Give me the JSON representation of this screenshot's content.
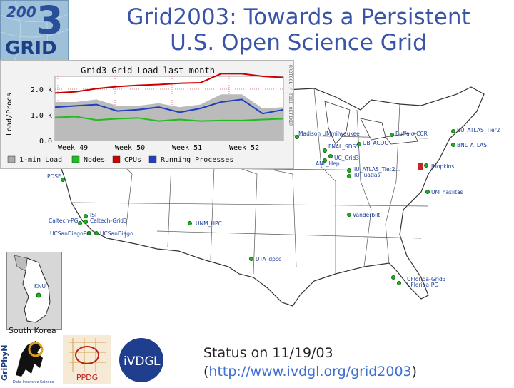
{
  "slide": {
    "title_line1": "Grid2003: Towards a Persistent",
    "title_line2": "U.S. Open Science Grid"
  },
  "logo2003": {
    "top": "200",
    "digit": "3",
    "bottom": "GRID"
  },
  "chart": {
    "title": "Grid3 Grid Load last month",
    "ylabel": "Load/Procs",
    "side_text": "RRDTOOL / TOBI OETIKER",
    "legend": [
      {
        "label": "1-min Load",
        "color": "#aaaaaa"
      },
      {
        "label": "Nodes",
        "color": "#22bb22"
      },
      {
        "label": "CPUs",
        "color": "#cc0000"
      },
      {
        "label": "Running Processes",
        "color": "#1f3fbf"
      }
    ]
  },
  "chart_data": {
    "type": "line",
    "title": "Grid3 Grid Load last month",
    "ylabel": "Load/Procs",
    "y_ticks": [
      "0.0",
      "1.0 k",
      "2.0 k"
    ],
    "x_ticks": [
      "Week 49",
      "Week 50",
      "Week 51",
      "Week 52"
    ],
    "ylim": [
      0,
      2500
    ],
    "series": [
      {
        "name": "CPUs",
        "values": [
          1850,
          1900,
          2020,
          2100,
          2150,
          2180,
          2230,
          2250,
          2600,
          2600,
          2500,
          2450
        ]
      },
      {
        "name": "Nodes",
        "values": [
          900,
          930,
          800,
          850,
          880,
          760,
          820,
          760,
          780,
          780,
          820,
          850
        ]
      },
      {
        "name": "Running Processes",
        "values": [
          1300,
          1350,
          1400,
          1150,
          1200,
          1300,
          1100,
          1250,
          1500,
          1600,
          1050,
          1200
        ]
      },
      {
        "name": "1-min Load",
        "values": [
          1500,
          1500,
          1600,
          1350,
          1350,
          1450,
          1300,
          1400,
          1800,
          1800,
          1250,
          1300
        ]
      }
    ]
  },
  "map": {
    "sites": [
      {
        "label": "Madison UMmilwaukee"
      },
      {
        "label": "UB_ACDC"
      },
      {
        "label": "Buffalo-CCR"
      },
      {
        "label": "BU_ATLAS_Tier2"
      },
      {
        "label": "BNL_ATLAS"
      },
      {
        "label": "FNAL_SDSS"
      },
      {
        "label": "UC_Grid3"
      },
      {
        "label": "ANL_Hep"
      },
      {
        "label": "IU_ATLAS_Tier2"
      },
      {
        "label": "IU_iuatlas"
      },
      {
        "label": "JHopkins"
      },
      {
        "label": "PDSF"
      },
      {
        "label": "UM_haslitas"
      },
      {
        "label": "ISI"
      },
      {
        "label": "Caltech-Grid3"
      },
      {
        "label": "Caltech-PG"
      },
      {
        "label": "UNM_HPC"
      },
      {
        "label": "Vanderbilt"
      },
      {
        "label": "UCSanDiegoPG"
      },
      {
        "label": "UCSanDiego"
      },
      {
        "label": "UTA_dpcc"
      },
      {
        "label": "UFlorida-Grid3"
      },
      {
        "label": "UFlorida-PG"
      },
      {
        "label": "KNU"
      }
    ]
  },
  "korea": {
    "caption": "South Korea"
  },
  "logos": {
    "griphyn": "GriPhyN",
    "griphyn_sub": "Data Intensive Science",
    "ppdg": "PPDG",
    "ivdgl_a": "iVDG",
    "ivdgl_b": "L"
  },
  "status": {
    "line1": "Status on 11/19/03",
    "open": "(",
    "link": "http://www.ivdgl.org/grid2003",
    "close": ")"
  }
}
